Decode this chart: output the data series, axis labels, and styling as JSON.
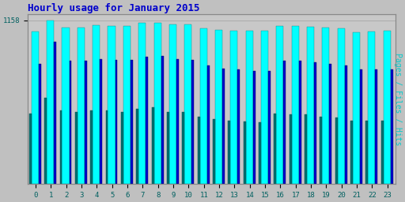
{
  "title": "Hourly usage for January 2015",
  "ylabel_right": "Pages / Files / Hits",
  "hours": [
    0,
    1,
    2,
    3,
    4,
    5,
    6,
    7,
    8,
    9,
    10,
    11,
    12,
    13,
    14,
    15,
    16,
    17,
    18,
    19,
    20,
    21,
    22,
    23
  ],
  "hits_vals": [
    1080,
    1158,
    1108,
    1108,
    1122,
    1120,
    1118,
    1140,
    1143,
    1130,
    1128,
    1100,
    1088,
    1083,
    1082,
    1082,
    1118,
    1118,
    1115,
    1108,
    1100,
    1073,
    1080,
    1082
  ],
  "files_vals": [
    850,
    1005,
    875,
    870,
    885,
    880,
    878,
    900,
    905,
    882,
    878,
    840,
    818,
    808,
    800,
    798,
    872,
    870,
    860,
    848,
    840,
    808,
    808,
    808
  ],
  "pages_vals": [
    500,
    608,
    522,
    510,
    522,
    520,
    510,
    532,
    542,
    510,
    508,
    478,
    458,
    448,
    440,
    438,
    500,
    490,
    490,
    478,
    468,
    448,
    448,
    448
  ],
  "hits_color": "#00FFFF",
  "files_color": "#0000CD",
  "pages_color": "#007070",
  "background_color": "#C0C0C0",
  "plot_bg_color": "#C8C8C8",
  "title_color": "#0000CC",
  "ylabel_color": "#00CCCC",
  "tick_color": "#006060",
  "ylim": [
    0,
    1200
  ],
  "ytick_label": "1158",
  "title_fontsize": 9,
  "ylabel_fontsize": 7,
  "tick_fontsize": 6.5
}
